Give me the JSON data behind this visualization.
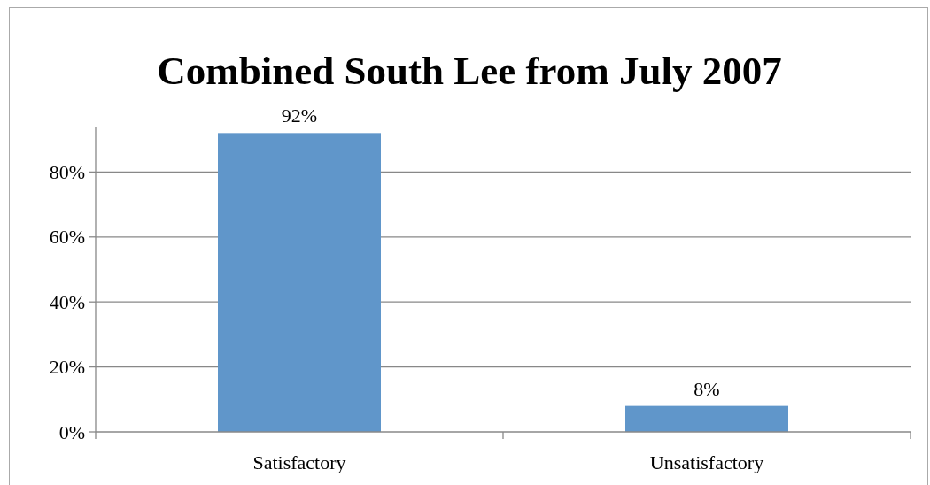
{
  "chart_data": {
    "type": "bar",
    "title": "Combined South Lee from July 2007",
    "categories": [
      "Satisfactory",
      "Unsatisfactory"
    ],
    "values": [
      92,
      8
    ],
    "color": "#6096ca",
    "value_labels": [
      "92%",
      "8%"
    ],
    "ylim": [
      0,
      94
    ],
    "yticks": [
      {
        "value": 0,
        "label": "0%"
      },
      {
        "value": 20,
        "label": "20%"
      },
      {
        "value": 40,
        "label": "40%"
      },
      {
        "value": 60,
        "label": "60%"
      },
      {
        "value": 80,
        "label": "80%"
      }
    ],
    "grid": "y"
  }
}
